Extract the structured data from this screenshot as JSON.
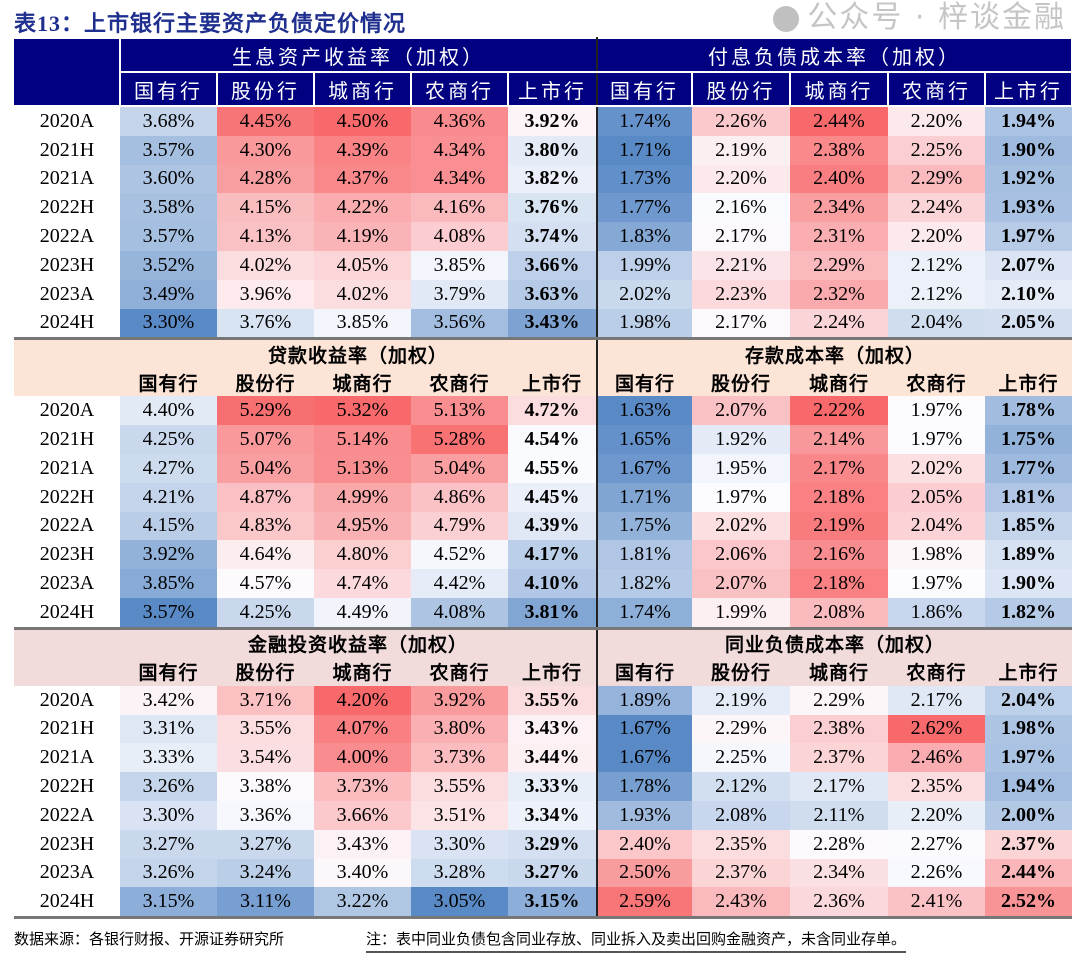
{
  "title": "表13：上市银行主要资产负债定价情况",
  "columns": [
    "国有行",
    "股份行",
    "城商行",
    "农商行",
    "上市行"
  ],
  "periods": [
    "2020A",
    "2021H",
    "2021A",
    "2022H",
    "2022A",
    "2023H",
    "2023A",
    "2024H"
  ],
  "colors": {
    "header_navy": "#000080",
    "peach": "#FCE4D6",
    "pink": "#F2DCDB",
    "low": "#5A8AC6",
    "mid": "#FCFCFF",
    "high": "#F8696B"
  },
  "sections": [
    {
      "style": "navy",
      "left": {
        "title": "生息资产收益率（加权）",
        "rows": [
          [
            "3.68%",
            "4.45%",
            "4.50%",
            "4.36%",
            "3.92%"
          ],
          [
            "3.57%",
            "4.30%",
            "4.39%",
            "4.34%",
            "3.80%"
          ],
          [
            "3.60%",
            "4.28%",
            "4.37%",
            "4.34%",
            "3.82%"
          ],
          [
            "3.58%",
            "4.15%",
            "4.22%",
            "4.16%",
            "3.76%"
          ],
          [
            "3.57%",
            "4.13%",
            "4.19%",
            "4.08%",
            "3.74%"
          ],
          [
            "3.52%",
            "4.02%",
            "4.05%",
            "3.85%",
            "3.66%"
          ],
          [
            "3.49%",
            "3.96%",
            "4.02%",
            "3.79%",
            "3.63%"
          ],
          [
            "3.30%",
            "3.76%",
            "3.85%",
            "3.56%",
            "3.43%"
          ]
        ]
      },
      "right": {
        "title": "付息负债成本率（加权）",
        "rows": [
          [
            "1.74%",
            "2.26%",
            "2.44%",
            "2.20%",
            "1.94%"
          ],
          [
            "1.71%",
            "2.19%",
            "2.38%",
            "2.25%",
            "1.90%"
          ],
          [
            "1.73%",
            "2.20%",
            "2.40%",
            "2.29%",
            "1.92%"
          ],
          [
            "1.77%",
            "2.16%",
            "2.34%",
            "2.24%",
            "1.93%"
          ],
          [
            "1.83%",
            "2.17%",
            "2.31%",
            "2.20%",
            "1.97%"
          ],
          [
            "1.99%",
            "2.21%",
            "2.29%",
            "2.12%",
            "2.07%"
          ],
          [
            "2.02%",
            "2.23%",
            "2.32%",
            "2.12%",
            "2.10%"
          ],
          [
            "1.98%",
            "2.17%",
            "2.24%",
            "2.04%",
            "2.05%"
          ]
        ]
      }
    },
    {
      "style": "peach",
      "left": {
        "title": "贷款收益率（加权）",
        "rows": [
          [
            "4.40%",
            "5.29%",
            "5.32%",
            "5.13%",
            "4.72%"
          ],
          [
            "4.25%",
            "5.07%",
            "5.14%",
            "5.28%",
            "4.54%"
          ],
          [
            "4.27%",
            "5.04%",
            "5.13%",
            "5.04%",
            "4.55%"
          ],
          [
            "4.21%",
            "4.87%",
            "4.99%",
            "4.86%",
            "4.45%"
          ],
          [
            "4.15%",
            "4.83%",
            "4.95%",
            "4.79%",
            "4.39%"
          ],
          [
            "3.92%",
            "4.64%",
            "4.80%",
            "4.52%",
            "4.17%"
          ],
          [
            "3.85%",
            "4.57%",
            "4.74%",
            "4.42%",
            "4.10%"
          ],
          [
            "3.57%",
            "4.25%",
            "4.49%",
            "4.08%",
            "3.81%"
          ]
        ]
      },
      "right": {
        "title": "存款成本率（加权）",
        "rows": [
          [
            "1.63%",
            "2.07%",
            "2.22%",
            "1.97%",
            "1.78%"
          ],
          [
            "1.65%",
            "1.92%",
            "2.14%",
            "1.97%",
            "1.75%"
          ],
          [
            "1.67%",
            "1.95%",
            "2.17%",
            "2.02%",
            "1.77%"
          ],
          [
            "1.71%",
            "1.97%",
            "2.18%",
            "2.05%",
            "1.81%"
          ],
          [
            "1.75%",
            "2.02%",
            "2.19%",
            "2.04%",
            "1.85%"
          ],
          [
            "1.81%",
            "2.06%",
            "2.16%",
            "1.98%",
            "1.89%"
          ],
          [
            "1.82%",
            "2.07%",
            "2.18%",
            "1.97%",
            "1.90%"
          ],
          [
            "1.74%",
            "1.99%",
            "2.08%",
            "1.86%",
            "1.82%"
          ]
        ]
      }
    },
    {
      "style": "pink",
      "left": {
        "title": "金融投资收益率（加权）",
        "rows": [
          [
            "3.42%",
            "3.71%",
            "4.20%",
            "3.92%",
            "3.55%"
          ],
          [
            "3.31%",
            "3.55%",
            "4.07%",
            "3.80%",
            "3.43%"
          ],
          [
            "3.33%",
            "3.54%",
            "4.00%",
            "3.73%",
            "3.44%"
          ],
          [
            "3.26%",
            "3.38%",
            "3.73%",
            "3.55%",
            "3.33%"
          ],
          [
            "3.30%",
            "3.36%",
            "3.66%",
            "3.51%",
            "3.34%"
          ],
          [
            "3.27%",
            "3.27%",
            "3.43%",
            "3.30%",
            "3.29%"
          ],
          [
            "3.26%",
            "3.24%",
            "3.40%",
            "3.28%",
            "3.27%"
          ],
          [
            "3.15%",
            "3.11%",
            "3.22%",
            "3.05%",
            "3.15%"
          ]
        ]
      },
      "right": {
        "title": "同业负债成本率（加权）",
        "rows": [
          [
            "1.89%",
            "2.19%",
            "2.29%",
            "2.17%",
            "2.04%"
          ],
          [
            "1.67%",
            "2.29%",
            "2.38%",
            "2.62%",
            "1.98%"
          ],
          [
            "1.67%",
            "2.25%",
            "2.37%",
            "2.46%",
            "1.97%"
          ],
          [
            "1.78%",
            "2.12%",
            "2.17%",
            "2.35%",
            "1.94%"
          ],
          [
            "1.93%",
            "2.08%",
            "2.11%",
            "2.20%",
            "2.00%"
          ],
          [
            "2.40%",
            "2.35%",
            "2.28%",
            "2.27%",
            "2.37%"
          ],
          [
            "2.50%",
            "2.37%",
            "2.34%",
            "2.26%",
            "2.44%"
          ],
          [
            "2.59%",
            "2.43%",
            "2.36%",
            "2.41%",
            "2.52%"
          ]
        ]
      }
    }
  ],
  "footer": {
    "source": "数据来源：各银行财报、开源证券研究所",
    "note": "注：表中同业负债包含同业存放、同业拆入及卖出回购金融资产，未含同业存单。"
  },
  "watermark": "公众号 · 梓谈金融"
}
